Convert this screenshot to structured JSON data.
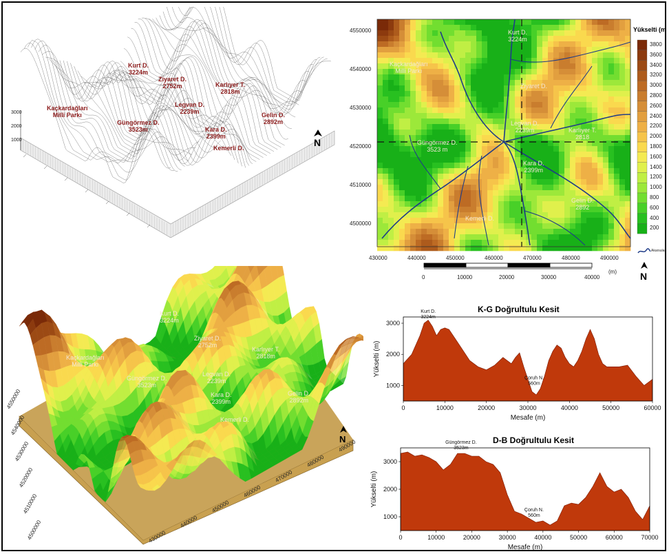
{
  "colors": {
    "peak_label": "#8b1a1a",
    "profile_fill": "#c0390b",
    "river": "#1f3c88",
    "lowland": "#18b418",
    "highland": "#7a2d0c"
  },
  "wireframe": {
    "labels": {
      "kurt": [
        "Kurt D.",
        "3224m"
      ],
      "ziyaret": [
        "Ziyaret D.",
        "2752m"
      ],
      "kariyer": [
        "Karlıyer T.",
        "2818m"
      ],
      "kackar": [
        "Kaçkardağları",
        "Milli Parkı"
      ],
      "legvan": [
        "Legvan D.",
        "2239m"
      ],
      "gungormez": [
        "Güngörmez D.",
        "3523m"
      ],
      "kara": [
        "Kara D.",
        "2399m"
      ],
      "gelin": [
        "Gelin D.",
        "2892m"
      ],
      "kemerli": [
        "Kemerli D."
      ]
    },
    "z_ticks": [
      "3000",
      "2000",
      "1000"
    ],
    "north_icon": "north-arrow-icon"
  },
  "map": {
    "legend_title": "Yükselti (m",
    "legend_values": [
      "3800",
      "3600",
      "3400",
      "3200",
      "3000",
      "2800",
      "2600",
      "2400",
      "2200",
      "2000",
      "1800",
      "1600",
      "1400",
      "1200",
      "1000",
      "800",
      "600",
      "400",
      "200"
    ],
    "legend_colors": [
      "#7a2a08",
      "#8c3a0e",
      "#9c4a14",
      "#ad5b1c",
      "#bd6b24",
      "#c97d2e",
      "#d58e38",
      "#e29f3f",
      "#eeb046",
      "#f6c44a",
      "#fad94e",
      "#f4ea52",
      "#e0f04c",
      "#c0ef44",
      "#9ce83a",
      "#72de30",
      "#48d028",
      "#28c020",
      "#18b018"
    ],
    "river_legend": "Akarsular",
    "y_ticks": [
      "4550000",
      "4540000",
      "4530000",
      "4520000",
      "4510000",
      "4500000"
    ],
    "x_ticks": [
      "430000",
      "440000",
      "450000",
      "460000",
      "470000",
      "480000",
      "490000"
    ],
    "labels": {
      "kurt": [
        "Kurt D.",
        "3224m"
      ],
      "kackar": [
        "Kaçkardağları",
        "Milli Parkı"
      ],
      "ziyaret": [
        "Ziyaret D."
      ],
      "legvan": [
        "Legvan D.",
        "2239m"
      ],
      "kariyer": [
        "Karlıyer T.",
        "2818"
      ],
      "gungormez": [
        "Güngörmez D.",
        "3523 m"
      ],
      "kara": [
        "Kara D.",
        "2399m"
      ],
      "gelin": [
        "Gelin D.",
        "2892"
      ],
      "kemerli": [
        "Kemerli D."
      ]
    },
    "scale_ticks": [
      "0",
      "10000",
      "20000",
      "30000",
      "40000"
    ],
    "scale_unit": "(m)"
  },
  "perspective": {
    "labels": {
      "kurt": [
        "Kurt D.",
        "3224m"
      ],
      "ziyaret": [
        "Ziyaret D.",
        "2752m"
      ],
      "kackar": [
        "Kaçkardağları",
        "Milli Parkı"
      ],
      "kariyer": [
        "Karlıyer T.",
        "2818m"
      ],
      "gungormez": [
        "Güngörmez D.",
        "3523m"
      ],
      "legvan": [
        "Legvan D.",
        "2239m"
      ],
      "kara": [
        "Kara D.",
        "2399m"
      ],
      "gelin": [
        "Gelin D.",
        "2892m"
      ],
      "kemerli": [
        "Kemerli D."
      ]
    },
    "y_ticks": [
      "4550000",
      "4540000",
      "4530000",
      "4520000",
      "4510000",
      "4500000"
    ],
    "x_ticks": [
      "430000",
      "440000",
      "450000",
      "460000",
      "470000",
      "480000",
      "490000"
    ]
  },
  "chart_data": [
    {
      "type": "area",
      "title": "K-G Doğrultulu Kesit",
      "xlabel": "Mesafe (m)",
      "ylabel": "Yükselti (m)",
      "xlim": [
        0,
        60000
      ],
      "ylim": [
        500,
        3200
      ],
      "x_ticks": [
        0,
        10000,
        20000,
        30000,
        40000,
        50000,
        60000
      ],
      "y_ticks": [
        1000,
        2000,
        3000
      ],
      "x": [
        0,
        2000,
        4000,
        5000,
        6000,
        7000,
        8000,
        9000,
        10000,
        11000,
        12000,
        14000,
        16000,
        18000,
        20000,
        22000,
        24000,
        26000,
        27000,
        28000,
        29000,
        30000,
        31000,
        32000,
        33000,
        34000,
        35000,
        36000,
        37000,
        38000,
        39000,
        40000,
        41000,
        42000,
        43000,
        44000,
        45000,
        46000,
        47000,
        48000,
        49000,
        50000,
        52000,
        54000,
        56000,
        58000,
        59000,
        60000
      ],
      "y": [
        1700,
        2000,
        2600,
        3000,
        3100,
        2900,
        2600,
        2800,
        2850,
        2800,
        2600,
        2200,
        1800,
        1600,
        1500,
        1650,
        1900,
        1700,
        1900,
        2050,
        1600,
        1200,
        800,
        700,
        900,
        1300,
        1800,
        2100,
        2300,
        2200,
        1900,
        1700,
        1600,
        1800,
        2100,
        2500,
        2800,
        2500,
        2000,
        1700,
        1600,
        1600,
        1600,
        1650,
        1300,
        1000,
        1100,
        1200
      ],
      "annotations": [
        {
          "text": [
            "Kurt D.",
            "3224m"
          ],
          "x": 6000,
          "y": 3224
        },
        {
          "text": [
            "Çoruh N.",
            "560m"
          ],
          "x": 31500,
          "y": 560
        }
      ]
    },
    {
      "type": "area",
      "title": "D-B Doğrultulu Kesit",
      "xlabel": "Mesafe (m)",
      "ylabel": "Yükselti (m)",
      "xlim": [
        0,
        70000
      ],
      "ylim": [
        500,
        3500
      ],
      "x_ticks": [
        0,
        10000,
        20000,
        30000,
        40000,
        50000,
        60000,
        70000
      ],
      "y_ticks": [
        1000,
        2000,
        3000
      ],
      "x": [
        0,
        2000,
        4000,
        6000,
        8000,
        10000,
        12000,
        14000,
        16000,
        18000,
        20000,
        22000,
        24000,
        26000,
        28000,
        30000,
        32000,
        34000,
        36000,
        38000,
        40000,
        42000,
        44000,
        46000,
        48000,
        50000,
        52000,
        54000,
        56000,
        58000,
        60000,
        62000,
        64000,
        66000,
        68000,
        70000
      ],
      "y": [
        3300,
        3350,
        3200,
        3250,
        3150,
        3000,
        2700,
        2900,
        3300,
        3300,
        3200,
        3200,
        3000,
        2900,
        2600,
        1800,
        1200,
        1100,
        950,
        800,
        850,
        700,
        850,
        1400,
        1500,
        1450,
        1700,
        2100,
        2600,
        2100,
        1900,
        2000,
        1700,
        1200,
        900,
        1400
      ],
      "annotations": [
        {
          "text": [
            "Güngörmez D.",
            "3523m"
          ],
          "x": 17000,
          "y": 3523
        },
        {
          "text": [
            "Çoruh N.",
            "560m"
          ],
          "x": 37500,
          "y": 560
        }
      ]
    }
  ]
}
